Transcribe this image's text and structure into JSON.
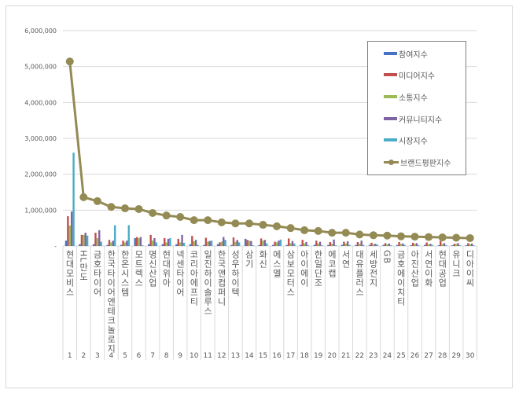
{
  "chart_data": {
    "type": "bar+line",
    "title": "",
    "xlabel": "",
    "ylabel": "",
    "ylim": [
      0,
      6000000
    ],
    "yticks": [
      0,
      1000000,
      2000000,
      3000000,
      4000000,
      5000000,
      6000000
    ],
    "ytick_labels": [
      "-",
      "1,000,000",
      "2,000,000",
      "3,000,000",
      "4,000,000",
      "5,000,000",
      "6,000,000"
    ],
    "grid": true,
    "legend_position": "upper-right (inside)",
    "ranks": [
      1,
      2,
      3,
      4,
      5,
      6,
      7,
      8,
      9,
      10,
      11,
      12,
      13,
      14,
      15,
      16,
      17,
      18,
      19,
      20,
      21,
      22,
      23,
      24,
      25,
      26,
      27,
      28,
      29,
      30
    ],
    "categories": [
      "현대모비스",
      "HL만도",
      "금호타이어",
      "한국타이어앤테크놀로지",
      "한온시스템",
      "모트렉스",
      "명신산업",
      "현대위아",
      "넥센타이어",
      "코리아에프티",
      "일진하이솔루스",
      "한국앤컴퍼니",
      "성우하이텍",
      "삼기",
      "화신",
      "에스엘",
      "삼보모터스",
      "아이에이",
      "한일단조",
      "에코캡",
      "서연",
      "대유플러스",
      "세방전지",
      "GB",
      "금호에이치티",
      "아진산업",
      "서연이화",
      "현대공업",
      "유니크",
      "디아이씨"
    ],
    "series": [
      {
        "name": "참여지수",
        "kind": "bar",
        "color": "#4472C4",
        "values": [
          150000,
          50000,
          50000,
          30000,
          30000,
          220000,
          50000,
          50000,
          50000,
          50000,
          30000,
          50000,
          30000,
          200000,
          30000,
          30000,
          30000,
          30000,
          30000,
          30000,
          30000,
          30000,
          30000,
          30000,
          30000,
          20000,
          30000,
          20000,
          20000,
          20000
        ]
      },
      {
        "name": "미디어지수",
        "kind": "bar",
        "color": "#C0504D",
        "values": [
          830000,
          310000,
          370000,
          170000,
          150000,
          250000,
          310000,
          220000,
          200000,
          280000,
          230000,
          100000,
          240000,
          170000,
          210000,
          120000,
          210000,
          170000,
          150000,
          110000,
          120000,
          110000,
          90000,
          80000,
          110000,
          90000,
          100000,
          140000,
          60000,
          80000
        ]
      },
      {
        "name": "소통지수",
        "kind": "bar",
        "color": "#9BBB59",
        "values": [
          570000,
          310000,
          220000,
          100000,
          100000,
          220000,
          150000,
          100000,
          100000,
          130000,
          120000,
          120000,
          120000,
          150000,
          150000,
          100000,
          80000,
          70000,
          70000,
          60000,
          70000,
          60000,
          50000,
          50000,
          60000,
          60000,
          50000,
          50000,
          60000,
          50000
        ]
      },
      {
        "name": "커뮤니티지수",
        "kind": "bar",
        "color": "#8064A2",
        "values": [
          960000,
          370000,
          440000,
          150000,
          150000,
          250000,
          220000,
          200000,
          310000,
          170000,
          140000,
          250000,
          170000,
          140000,
          170000,
          150000,
          140000,
          110000,
          120000,
          180000,
          130000,
          150000,
          60000,
          70000,
          70000,
          80000,
          60000,
          80000,
          80000,
          70000
        ]
      },
      {
        "name": "시장지수",
        "kind": "bar",
        "color": "#4BACC6",
        "values": [
          2600000,
          290000,
          120000,
          580000,
          580000,
          20000,
          100000,
          220000,
          90000,
          30000,
          150000,
          170000,
          100000,
          20000,
          70000,
          180000,
          70000,
          20000,
          20000,
          20000,
          30000,
          30000,
          40000,
          20000,
          30000,
          20000,
          30000,
          20000,
          20000,
          20000
        ]
      },
      {
        "name": "브랜드평판지수",
        "kind": "line",
        "color": "#948A54",
        "values": [
          5140000,
          1360000,
          1250000,
          1090000,
          1050000,
          1030000,
          920000,
          850000,
          810000,
          720000,
          720000,
          660000,
          630000,
          630000,
          590000,
          550000,
          500000,
          440000,
          420000,
          370000,
          370000,
          320000,
          300000,
          290000,
          270000,
          260000,
          250000,
          240000,
          230000,
          220000
        ]
      }
    ]
  }
}
